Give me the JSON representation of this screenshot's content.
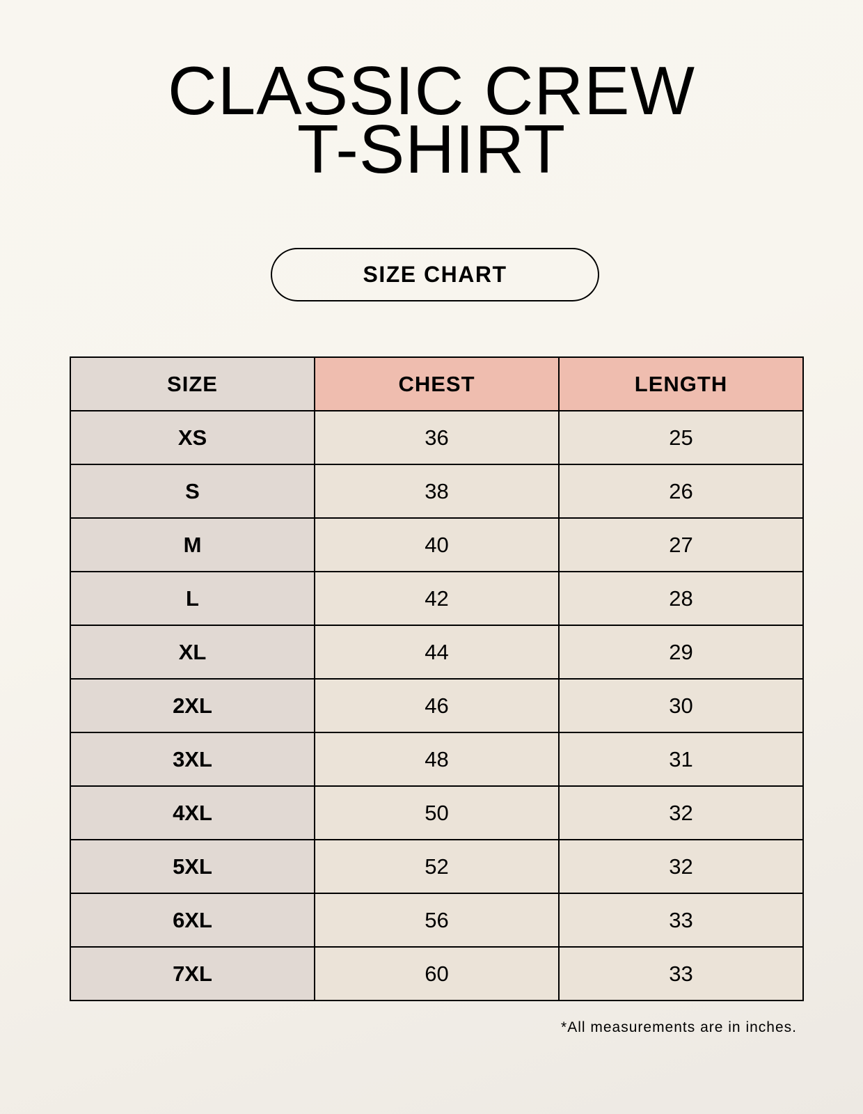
{
  "title": {
    "line1": "CLASSIC CREW",
    "line2": "T-SHIRT"
  },
  "badge": "SIZE CHART",
  "table": {
    "headers": [
      "SIZE",
      "CHEST",
      "LENGTH"
    ],
    "rows": [
      [
        "XS",
        "36",
        "25"
      ],
      [
        "S",
        "38",
        "26"
      ],
      [
        "M",
        "40",
        "27"
      ],
      [
        "L",
        "42",
        "28"
      ],
      [
        "XL",
        "44",
        "29"
      ],
      [
        "2XL",
        "46",
        "30"
      ],
      [
        "3XL",
        "48",
        "31"
      ],
      [
        "4XL",
        "50",
        "32"
      ],
      [
        "5XL",
        "52",
        "32"
      ],
      [
        "6XL",
        "56",
        "33"
      ],
      [
        "7XL",
        "60",
        "33"
      ]
    ]
  },
  "footnote": "*All measurements are in inches.",
  "colors": {
    "header_accent": "#efbdaf",
    "size_column": "#e1d9d3",
    "value_cells": "#ebe3d8"
  }
}
